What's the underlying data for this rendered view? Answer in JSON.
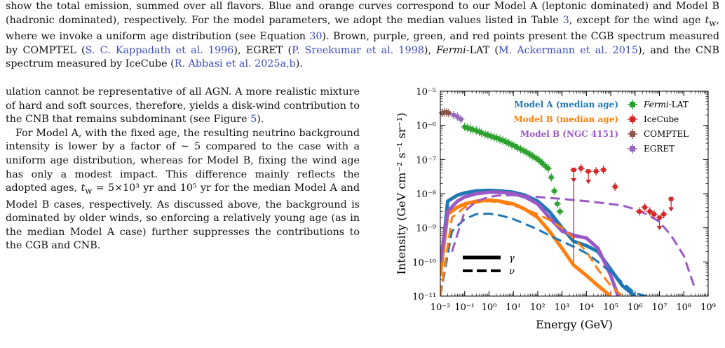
{
  "caption": {
    "line1": "show the total emission, summed over all flavors. Blue and orange curves correspond to our Model A (leptonic dominated) and",
    "line2": "Model B (hadronic dominated), respectively. For the model parameters, we adopt the median values listed in Table ",
    "line2_ref": "3",
    "line2_end": ", except",
    "line3a": "for the wind age ",
    "line3_var": "t",
    "line3_sub": "w",
    "line3b": ", where we invoke a uniform age distribution (see Equation ",
    "line3_ref": "30",
    "line3c": "). Brown, purple, green, and red points present",
    "line4a": "the CGB spectrum measured by COMPTEL (",
    "line4_ref1": "S. C. Kappadath et al. 1996",
    "line4b": "), EGRET (",
    "line4_ref2": "P. Sreekumar et al. 1998",
    "line4c": "), ",
    "line4_fermi": "Fermi",
    "line4d": "-LAT",
    "line5_ref1": "M. Ackermann et al. 2015",
    "line5a": "), and the CNB spectrum measured by IceCube (",
    "line5_ref2": "R. Abbasi et al. 2025a,b",
    "line5b": ")."
  },
  "body_text": {
    "p1": "ulation cannot be representative of all AGN. A more realistic mixture of hard and soft sources, therefore, yields a disk-wind contribution to the CNB that remains subdominant (see Figure ",
    "p1_ref": "5",
    "p1_end": ").",
    "p2a": "For Model A, with the fixed age, the resulting neutrino background intensity is lower by a factor of ∼ 5 compared to the case with a uniform age distribution, whereas for Model B, fixing the wind age has only a modest impact. This difference mainly reflects the adopted ages, ",
    "p2_var": "t",
    "p2_sub": "w",
    "p2b": " = 5×10³ yr and 10⁵ yr for the median Model A and Model B cases, respectively. As discussed above, the background is dominated by older winds, so enforcing a relatively young age (as in the median Model A case) further suppresses the contributions to the CGB and CNB."
  },
  "figure": {
    "xlabel": "Energy (GeV)",
    "ylabel": "Intensity (GeV cm⁻² s⁻¹ sr⁻¹)",
    "legend_models": [
      "Model A (median age)",
      "Model B (median age)",
      "Model B (NGC 4151)"
    ],
    "legend_data": [
      "Fermi-LAT",
      "IceCube",
      "COMPTEL",
      "EGRET"
    ],
    "linestyle_gamma": "γ",
    "linestyle_nu": "ν",
    "x_ticks": [
      "10⁻²",
      "10⁻¹",
      "10⁰",
      "10¹",
      "10²",
      "10³",
      "10⁴",
      "10⁵",
      "10⁶",
      "10⁷",
      "10⁸",
      "10⁹"
    ],
    "y_ticks": [
      "10⁻¹¹",
      "10⁻¹⁰",
      "10⁻⁹",
      "10⁻⁸",
      "10⁻⁷",
      "10⁻⁶",
      "10⁻⁵"
    ]
  },
  "colors": {
    "model_a": "#1f77b4",
    "model_b": "#ff7f0e",
    "model_ngc": "#9b59c6",
    "fermi": "#2ca02c",
    "icecube": "#d62728",
    "comptel": "#8c564b",
    "egret": "#9467bd",
    "link": "#3b4cc0"
  },
  "chart_data": {
    "type": "line",
    "xscale": "log",
    "yscale": "log",
    "xlim": [
      0.01,
      1000000000.0
    ],
    "ylim": [
      1e-11,
      1e-05
    ],
    "xlabel": "Energy (GeV)",
    "ylabel": "Intensity (GeV cm⁻² s⁻¹ sr⁻¹)",
    "legend_position": "top-right",
    "series": [
      {
        "name": "Model A (median age)",
        "style": "gamma",
        "color": "#1f77b4",
        "x": [
          0.01,
          0.02,
          0.05,
          0.1,
          0.3,
          1,
          3,
          10,
          30,
          100,
          300,
          1000,
          3000,
          10000,
          30000,
          100000,
          300000,
          1000000
        ],
        "y": [
          4e-11,
          6e-09,
          9e-09,
          1.05e-08,
          1.2e-08,
          1.25e-08,
          1.2e-08,
          1.1e-08,
          9e-09,
          6e-09,
          3e-09,
          1e-09,
          4e-10,
          3e-10,
          2e-10,
          6e-11,
          2e-11,
          1e-11
        ]
      },
      {
        "name": "Model B (median age)",
        "style": "gamma",
        "color": "#ff7f0e",
        "x": [
          0.01,
          0.02,
          0.05,
          0.1,
          0.3,
          1,
          3,
          10,
          30,
          100,
          300,
          1000,
          3000,
          10000,
          30000,
          100000
        ],
        "y": [
          4e-11,
          2.5e-09,
          4e-09,
          5e-09,
          6e-09,
          6.5e-09,
          6e-09,
          5e-09,
          3.5e-09,
          2e-09,
          8e-10,
          2.5e-10,
          8e-11,
          4e-11,
          2e-11,
          1e-11
        ]
      },
      {
        "name": "Model B (NGC 4151)",
        "style": "gamma",
        "color": "#9b59c6",
        "x": [
          0.01,
          0.02,
          0.05,
          0.1,
          0.3,
          1,
          3,
          10,
          30,
          100,
          300,
          1000,
          3000,
          10000,
          30000,
          100000,
          200000
        ],
        "y": [
          1e-10,
          3e-09,
          6e-09,
          8e-09,
          1e-08,
          1.1e-08,
          1.1e-08,
          1e-08,
          8e-09,
          5e-09,
          2e-09,
          8e-10,
          6e-10,
          5e-10,
          2.5e-10,
          4e-11,
          1e-11
        ]
      },
      {
        "name": "Model A (median age)",
        "style": "nu",
        "color": "#1f77b4",
        "x": [
          0.01,
          0.03,
          0.1,
          0.3,
          1,
          3,
          10,
          30,
          100,
          300,
          1000,
          3000,
          10000,
          30000,
          100000,
          300000,
          1000000,
          3000000
        ],
        "y": [
          1e-11,
          8e-10,
          1.8e-09,
          2.5e-09,
          2.6e-09,
          2.3e-09,
          1.8e-09,
          1.3e-09,
          9e-10,
          6e-10,
          4e-10,
          2.8e-10,
          1.8e-10,
          1e-10,
          5e-11,
          2.5e-11,
          1.2e-11,
          1e-11
        ]
      },
      {
        "name": "Model B (median age)",
        "style": "nu",
        "color": "#ff7f0e",
        "x": [
          0.01,
          0.03,
          0.1,
          0.3,
          1,
          3,
          10,
          30,
          100,
          300,
          1000,
          3000,
          10000,
          30000,
          100000,
          300000
        ],
        "y": [
          1e-11,
          2e-09,
          4e-09,
          5.5e-09,
          6e-09,
          5.5e-09,
          4.5e-09,
          3.5e-09,
          2.5e-09,
          1.7e-09,
          1e-09,
          5e-10,
          2e-10,
          6e-11,
          2e-11,
          1e-11
        ]
      },
      {
        "name": "Model B (NGC 4151)",
        "style": "nu",
        "color": "#9b59c6",
        "x": [
          0.03,
          0.1,
          0.3,
          1,
          3,
          10,
          30,
          100,
          300,
          1000,
          3000,
          10000,
          30000,
          100000,
          300000,
          1000000,
          3000000,
          10000000,
          30000000,
          100000000,
          300000000
        ],
        "y": [
          2e-10,
          3e-09,
          6e-09,
          8e-09,
          9e-09,
          9e-09,
          8.5e-09,
          8e-09,
          7.5e-09,
          7e-09,
          6.5e-09,
          6e-09,
          5.5e-09,
          5e-09,
          4.5e-09,
          3.5e-09,
          2.5e-09,
          1.5e-09,
          6e-10,
          1.5e-10,
          1.5e-11
        ]
      }
    ],
    "points": {
      "Fermi-LAT": {
        "color": "#2ca02c",
        "x": [
          0.1,
          0.13,
          0.17,
          0.22,
          0.3,
          0.4,
          0.5,
          0.7,
          0.9,
          1.2,
          1.6,
          2.1,
          2.8,
          3.7,
          5,
          6.5,
          8.7,
          11.5,
          15,
          20,
          27,
          36,
          48,
          63,
          85,
          113,
          150,
          200,
          270,
          360,
          480,
          640,
          820
        ],
        "y": [
          9e-07,
          8.5e-07,
          8e-07,
          7.5e-07,
          7e-07,
          6.5e-07,
          6e-07,
          5.5e-07,
          5.2e-07,
          4.8e-07,
          4.5e-07,
          4.2e-07,
          3.9e-07,
          3.6e-07,
          3.3e-07,
          3e-07,
          2.7e-07,
          2.5e-07,
          2.2e-07,
          2e-07,
          1.8e-07,
          1.6e-07,
          1.4e-07,
          1.25e-07,
          1.1e-07,
          9.5e-08,
          8e-08,
          6.5e-08,
          5.5e-08,
          3e-08,
          1.2e-08,
          5e-09,
          3e-09
        ]
      },
      "IceCube": {
        "color": "#d62728",
        "x": [
          3000,
          6000,
          12000,
          25000,
          50000,
          150000,
          1500000,
          2500000,
          4000000,
          6000000,
          10000000,
          15000000,
          30000000
        ],
        "y": [
          5e-08,
          5.5e-08,
          4.5e-08,
          4.5e-08,
          5e-08,
          1.6e-08,
          3e-09,
          4e-09,
          3e-09,
          2.5e-09,
          2e-09,
          2.5e-09,
          7e-09
        ],
        "upper_limits_x": [
          3000,
          12000,
          10000000,
          30000000
        ]
      },
      "COMPTEL": {
        "color": "#8c564b",
        "x": [
          0.012,
          0.015,
          0.018,
          0.022
        ],
        "y": [
          2.3e-06,
          2.4e-06,
          2.4e-06,
          2.3e-06
        ]
      },
      "EGRET": {
        "color": "#9467bd",
        "x": [
          0.035,
          0.05,
          0.07
        ],
        "y": [
          2e-06,
          1.8e-06,
          1.5e-06
        ]
      }
    }
  }
}
